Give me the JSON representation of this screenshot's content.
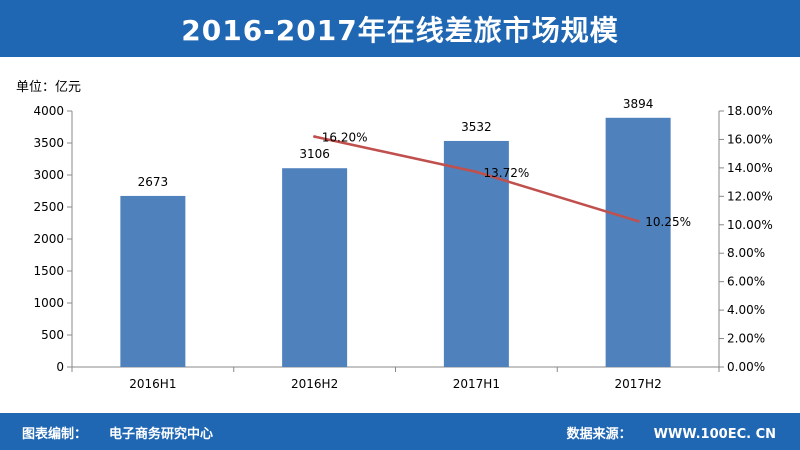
{
  "title": "2016-2017年在线差旅市场规模",
  "footer": {
    "compiler_label": "图表编制：",
    "compiler": "电子商务研究中心",
    "source_label": "数据来源：",
    "source": "WWW.100EC. CN"
  },
  "colors": {
    "header_bg": "#1f66b3",
    "bar": "#4f81bd",
    "line": "#c0504d"
  },
  "chart_data": {
    "type": "bar",
    "categories": [
      "2016H1",
      "2016H2",
      "2017H1",
      "2017H2"
    ],
    "unit_label": "单位：亿元",
    "series": [
      {
        "type": "bar",
        "values": [
          2673,
          3106,
          3532,
          3894
        ],
        "axis": "left"
      },
      {
        "type": "line",
        "values": [
          null,
          0.162,
          0.1372,
          0.1025
        ],
        "axis": "right",
        "labels": [
          null,
          "16.20%",
          "13.72%",
          "10.25%"
        ]
      }
    ],
    "ylim": [
      0,
      4000
    ],
    "yticks": [
      "0",
      "500",
      "1000",
      "1500",
      "2000",
      "2500",
      "3000",
      "3500",
      "4000"
    ],
    "y2lim": [
      0,
      0.18
    ],
    "y2ticks": [
      "0.00%",
      "2.00%",
      "4.00%",
      "6.00%",
      "8.00%",
      "10.00%",
      "12.00%",
      "14.00%",
      "16.00%",
      "18.00%"
    ],
    "grid": false,
    "legend": "none"
  }
}
